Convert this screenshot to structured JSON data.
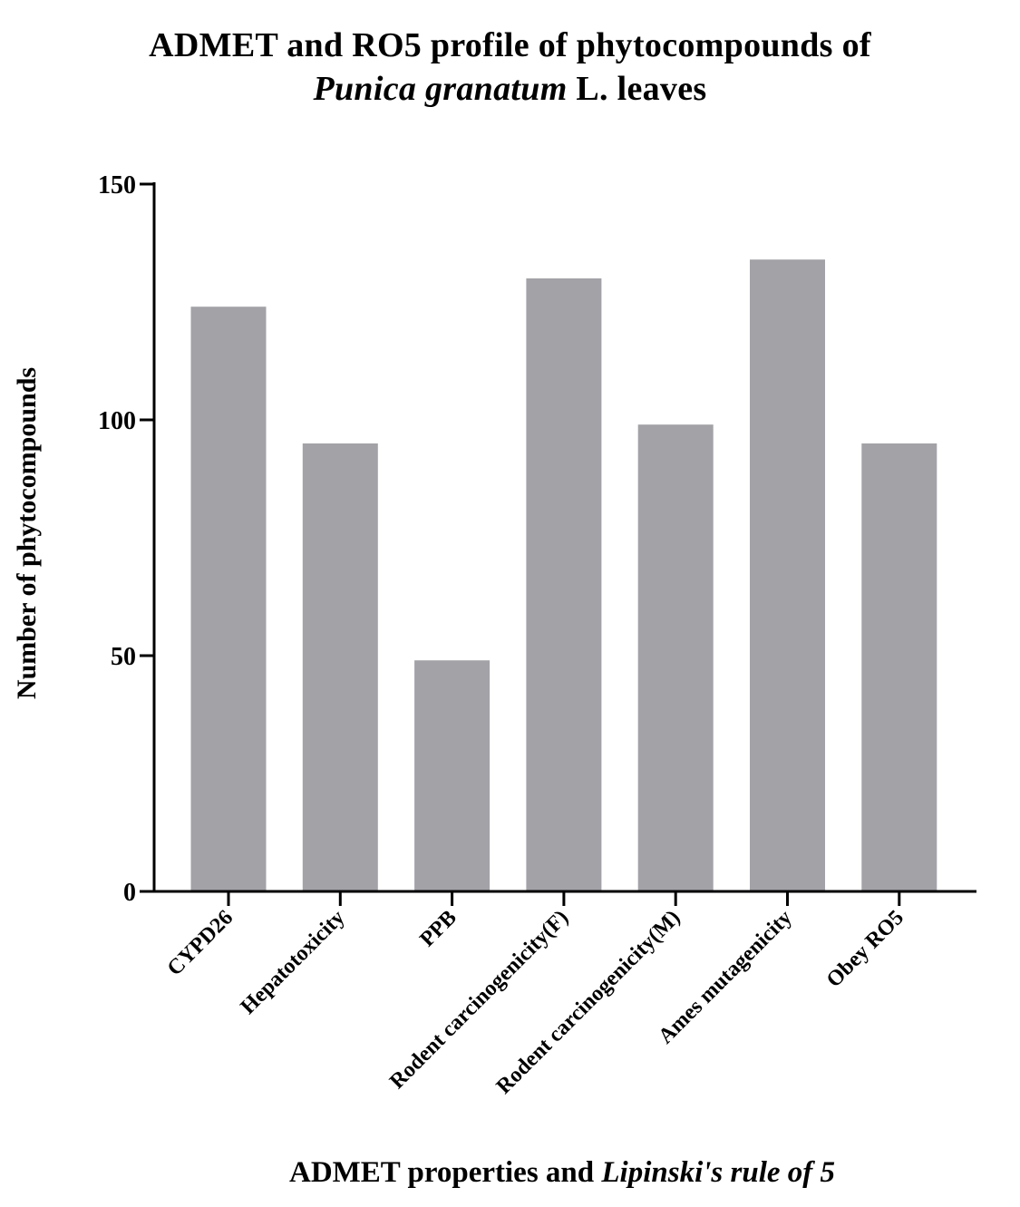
{
  "chart_data": {
    "type": "bar",
    "title_line1": "ADMET and RO5 profile of phytocompounds of",
    "title_line2_italic": "Punica granatum",
    "title_line2_rest": " L. leaves",
    "xlabel_part1": "ADMET properties and ",
    "xlabel_italic": "Lipinski's rule of 5",
    "ylabel": "Number of phytocompounds",
    "categories": [
      "CYPD26",
      "Hepatotoxicity",
      "PPB",
      "Rodent carcinogenicity(F)",
      "Rodent carcinogenicity(M)",
      "Ames mutagenicity",
      "Obey RO5"
    ],
    "values": [
      124,
      95,
      49,
      130,
      99,
      134,
      95
    ],
    "ylim": [
      0,
      150
    ],
    "yticks": [
      0,
      50,
      100,
      150
    ],
    "bar_color": "#a3a2a7",
    "grid": false,
    "legend": "none"
  }
}
